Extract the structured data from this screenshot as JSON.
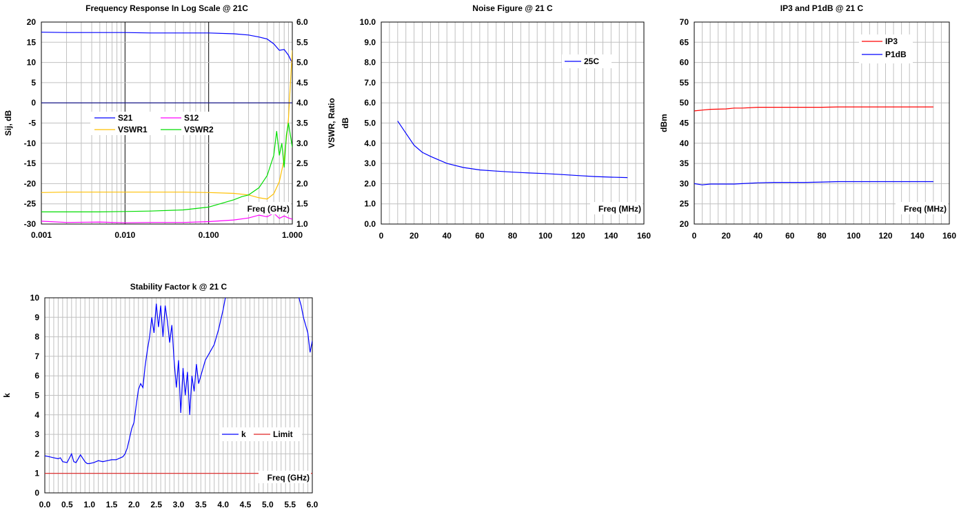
{
  "chart_data": [
    {
      "id": "freq",
      "type": "line",
      "title": "Frequency Response In Log Scale @ 21C",
      "xlabel": "Freq (GHz)",
      "ylabel": "Sij, dB",
      "y2label": "VSWR, Ratio",
      "xscale": "log",
      "xlim": [
        0.001,
        1.0
      ],
      "ylim": [
        -30,
        20
      ],
      "y2lim": [
        1.0,
        6.0
      ],
      "xticks": [
        "0.001",
        "0.010",
        "0.100",
        "1.000"
      ],
      "yticks": [
        "-30",
        "-25",
        "-20",
        "-15",
        "-10",
        "-5",
        "0",
        "5",
        "10",
        "15",
        "20"
      ],
      "y2ticks": [
        "1.0",
        "1.5",
        "2.0",
        "2.5",
        "3.0",
        "3.5",
        "4.0",
        "4.5",
        "5.0",
        "5.5",
        "6.0"
      ],
      "legend_position": "center-left",
      "series": [
        {
          "name": "S21",
          "axis": "left",
          "color": "#0000ff",
          "x": [
            0.001,
            0.002,
            0.005,
            0.01,
            0.02,
            0.05,
            0.1,
            0.2,
            0.3,
            0.4,
            0.5,
            0.6,
            0.7,
            0.8,
            0.9,
            1.0
          ],
          "y": [
            17.5,
            17.4,
            17.4,
            17.4,
            17.3,
            17.3,
            17.3,
            17.1,
            16.8,
            16.3,
            15.8,
            14.6,
            13.0,
            13.2,
            11.8,
            9.8
          ]
        },
        {
          "name": "S12",
          "axis": "left",
          "color": "#ff00ff",
          "x": [
            0.001,
            0.002,
            0.005,
            0.01,
            0.02,
            0.05,
            0.1,
            0.2,
            0.3,
            0.4,
            0.5,
            0.6,
            0.7,
            0.8,
            0.9,
            1.0
          ],
          "y": [
            -29.3,
            -29.6,
            -29.5,
            -29.7,
            -29.6,
            -29.6,
            -29.4,
            -29.0,
            -28.5,
            -27.8,
            -28.2,
            -27.3,
            -28.6,
            -28.0,
            -28.5,
            -28.8
          ]
        },
        {
          "name": "VSWR1",
          "axis": "right",
          "color": "#ffc000",
          "x": [
            0.001,
            0.002,
            0.005,
            0.01,
            0.02,
            0.05,
            0.1,
            0.2,
            0.3,
            0.4,
            0.5,
            0.6,
            0.7,
            0.8,
            0.9,
            0.95,
            1.0
          ],
          "y": [
            1.78,
            1.79,
            1.79,
            1.79,
            1.79,
            1.79,
            1.78,
            1.76,
            1.72,
            1.65,
            1.62,
            1.75,
            2.05,
            2.6,
            3.6,
            4.5,
            5.3
          ]
        },
        {
          "name": "VSWR2",
          "axis": "right",
          "color": "#00dd00",
          "x": [
            0.001,
            0.002,
            0.005,
            0.01,
            0.02,
            0.05,
            0.1,
            0.2,
            0.25,
            0.3,
            0.4,
            0.5,
            0.6,
            0.65,
            0.7,
            0.75,
            0.8,
            0.85,
            0.9,
            1.0
          ],
          "y": [
            1.3,
            1.3,
            1.3,
            1.31,
            1.32,
            1.35,
            1.42,
            1.6,
            1.68,
            1.72,
            1.9,
            2.2,
            2.7,
            3.3,
            2.7,
            3.0,
            2.4,
            3.2,
            3.5,
            2.9
          ]
        },
        {
          "name": "",
          "axis": "left",
          "color": "#000080",
          "x": [
            0.001,
            1.0
          ],
          "y": [
            0,
            0
          ]
        }
      ]
    },
    {
      "id": "nf",
      "type": "line",
      "title": "Noise Figure @ 21 C",
      "xlabel": "Freq (MHz)",
      "ylabel": "dB",
      "xlim": [
        0,
        160
      ],
      "ylim": [
        0,
        10
      ],
      "xticks": [
        "0",
        "20",
        "40",
        "60",
        "80",
        "100",
        "120",
        "140",
        "160"
      ],
      "yticks": [
        "0.0",
        "1.0",
        "2.0",
        "3.0",
        "4.0",
        "5.0",
        "6.0",
        "7.0",
        "8.0",
        "9.0",
        "10.0"
      ],
      "legend_position": "top-right",
      "series": [
        {
          "name": "25C",
          "color": "#0000ff",
          "x": [
            10,
            15,
            20,
            25,
            30,
            40,
            50,
            60,
            70,
            80,
            90,
            100,
            110,
            120,
            130,
            140,
            150
          ],
          "y": [
            5.1,
            4.5,
            3.9,
            3.55,
            3.35,
            3.0,
            2.8,
            2.68,
            2.62,
            2.57,
            2.53,
            2.5,
            2.45,
            2.4,
            2.35,
            2.32,
            2.3
          ]
        }
      ]
    },
    {
      "id": "ip3",
      "type": "line",
      "title": "IP3 and P1dB @ 21 C",
      "xlabel": "Freq (MHz)",
      "ylabel": "dBm",
      "xlim": [
        0,
        160
      ],
      "ylim": [
        20,
        70
      ],
      "xticks": [
        "0",
        "20",
        "40",
        "60",
        "80",
        "100",
        "120",
        "140",
        "160"
      ],
      "yticks": [
        "20",
        "25",
        "30",
        "35",
        "40",
        "45",
        "50",
        "55",
        "60",
        "65",
        "70"
      ],
      "legend_position": "top-right",
      "series": [
        {
          "name": "IP3",
          "color": "#ff0000",
          "x": [
            0,
            5,
            10,
            20,
            25,
            30,
            40,
            50,
            60,
            70,
            80,
            90,
            100,
            110,
            120,
            130,
            140,
            150
          ],
          "y": [
            48.0,
            48.2,
            48.4,
            48.5,
            48.7,
            48.7,
            48.9,
            48.9,
            48.9,
            48.9,
            48.9,
            49.0,
            49.0,
            49.0,
            49.0,
            49.0,
            49.0,
            49.0
          ]
        },
        {
          "name": "P1dB",
          "color": "#0000ff",
          "x": [
            0,
            5,
            10,
            20,
            25,
            30,
            40,
            50,
            60,
            70,
            80,
            90,
            100,
            110,
            120,
            130,
            140,
            150
          ],
          "y": [
            30.0,
            29.7,
            29.9,
            29.9,
            29.9,
            30.0,
            30.2,
            30.3,
            30.3,
            30.3,
            30.4,
            30.5,
            30.5,
            30.5,
            30.5,
            30.5,
            30.5,
            30.5
          ]
        }
      ]
    },
    {
      "id": "k",
      "type": "line",
      "title": "Stability Factor k @ 21 C",
      "xlabel": "Freq (GHz)",
      "ylabel": "k",
      "xlim": [
        0,
        6
      ],
      "ylim": [
        0,
        10
      ],
      "xticks": [
        "0.0",
        "0.5",
        "1.0",
        "1.5",
        "2.0",
        "2.5",
        "3.0",
        "3.5",
        "4.0",
        "4.5",
        "5.0",
        "5.5",
        "6.0"
      ],
      "yticks": [
        "0",
        "1",
        "2",
        "3",
        "4",
        "5",
        "6",
        "7",
        "8",
        "9",
        "10"
      ],
      "legend_position": "bottom-right",
      "series": [
        {
          "name": "k",
          "color": "#0000ff",
          "x": [
            0.0,
            0.1,
            0.2,
            0.3,
            0.35,
            0.4,
            0.5,
            0.6,
            0.65,
            0.7,
            0.8,
            0.9,
            0.95,
            1.0,
            1.1,
            1.2,
            1.3,
            1.4,
            1.5,
            1.6,
            1.7,
            1.75,
            1.8,
            1.85,
            1.9,
            1.95,
            2.0,
            2.05,
            2.1,
            2.15,
            2.2,
            2.25,
            2.3,
            2.35,
            2.4,
            2.45,
            2.5,
            2.55,
            2.6,
            2.65,
            2.7,
            2.75,
            2.8,
            2.85,
            2.9,
            2.95,
            3.0,
            3.05,
            3.1,
            3.15,
            3.2,
            3.25,
            3.3,
            3.35,
            3.4,
            3.45,
            3.5,
            3.6,
            3.7,
            3.8,
            3.9,
            4.0,
            4.05,
            4.1,
            4.15
          ],
          "y": [
            1.9,
            1.85,
            1.8,
            1.75,
            1.8,
            1.6,
            1.55,
            2.0,
            1.6,
            1.55,
            1.95,
            1.6,
            1.5,
            1.5,
            1.55,
            1.65,
            1.6,
            1.65,
            1.7,
            1.7,
            1.8,
            1.85,
            2.0,
            2.3,
            2.8,
            3.3,
            3.6,
            4.5,
            5.3,
            5.6,
            5.4,
            6.5,
            7.3,
            8.0,
            9.0,
            8.2,
            9.7,
            8.5,
            9.6,
            8.0,
            9.6,
            8.8,
            7.7,
            8.6,
            6.8,
            5.4,
            6.8,
            4.1,
            6.4,
            5.0,
            6.2,
            4.0,
            6.0,
            5.2,
            6.6,
            5.6,
            6.0,
            6.8,
            7.2,
            7.6,
            8.4,
            9.4,
            10.0,
            10.2,
            10.5
          ]
        },
        {
          "name": "",
          "color": "#0000ff",
          "x": [
            5.6,
            5.65,
            5.7,
            5.75,
            5.8,
            5.85,
            5.9,
            5.95,
            6.0
          ],
          "y": [
            10.5,
            10.2,
            10.0,
            9.6,
            9.0,
            8.6,
            8.2,
            7.2,
            7.8
          ]
        },
        {
          "name": "Limit",
          "color": "#e02020",
          "x": [
            0,
            6
          ],
          "y": [
            1,
            1
          ]
        }
      ]
    }
  ]
}
